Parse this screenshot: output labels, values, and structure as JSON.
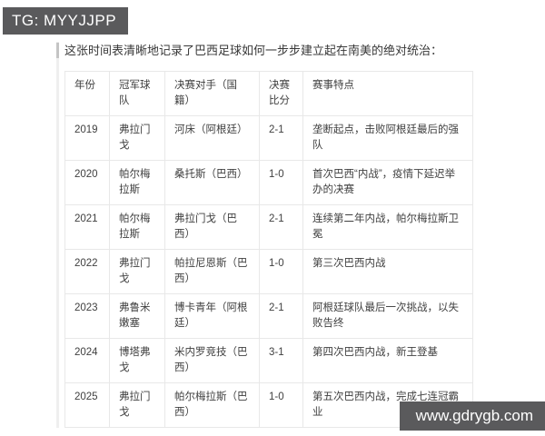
{
  "watermarks": {
    "telegram": "TG: MYYJJPP",
    "website": "www.gdrygb.com"
  },
  "intro": "这张时间表清晰地记录了巴西足球如何一步步建立起在南美的绝对统治：",
  "table": {
    "headers": [
      "年份",
      "冠军球队",
      "决赛对手（国籍）",
      "决赛比分",
      "赛事特点"
    ],
    "rows": [
      {
        "year": "2019",
        "champion": "弗拉门戈",
        "opponent": "河床（阿根廷）",
        "score": "2-1",
        "note": "垄断起点，击败阿根廷最后的强队"
      },
      {
        "year": "2020",
        "champion": "帕尔梅拉斯",
        "opponent": "桑托斯（巴西）",
        "score": "1-0",
        "note": "首次巴西“内战”，疫情下延迟举办的决赛"
      },
      {
        "year": "2021",
        "champion": "帕尔梅拉斯",
        "opponent": "弗拉门戈（巴西）",
        "score": "2-1",
        "note": "连续第二年内战，帕尔梅拉斯卫冕"
      },
      {
        "year": "2022",
        "champion": "弗拉门戈",
        "opponent": "帕拉尼恩斯（巴西）",
        "score": "1-0",
        "note": "第三次巴西内战"
      },
      {
        "year": "2023",
        "champion": "弗鲁米嫩塞",
        "opponent": "博卡青年（阿根廷）",
        "score": "2-1",
        "note": "阿根廷球队最后一次挑战，以失败告终"
      },
      {
        "year": "2024",
        "champion": "博塔弗戈",
        "opponent": "米内罗竞技（巴西）",
        "score": "3-1",
        "note": "第四次巴西内战，新王登基"
      },
      {
        "year": "2025",
        "champion": "弗拉门戈",
        "opponent": "帕尔梅拉斯（巴西）",
        "score": "1-0",
        "note": "第五次巴西内战，完成七连冠霸业"
      }
    ]
  },
  "colors": {
    "badge_bg": "#5a5a5c",
    "text": "#3f3f3f",
    "table_border": "#e8e8e8",
    "quote_bar": "#c4c4c4"
  }
}
